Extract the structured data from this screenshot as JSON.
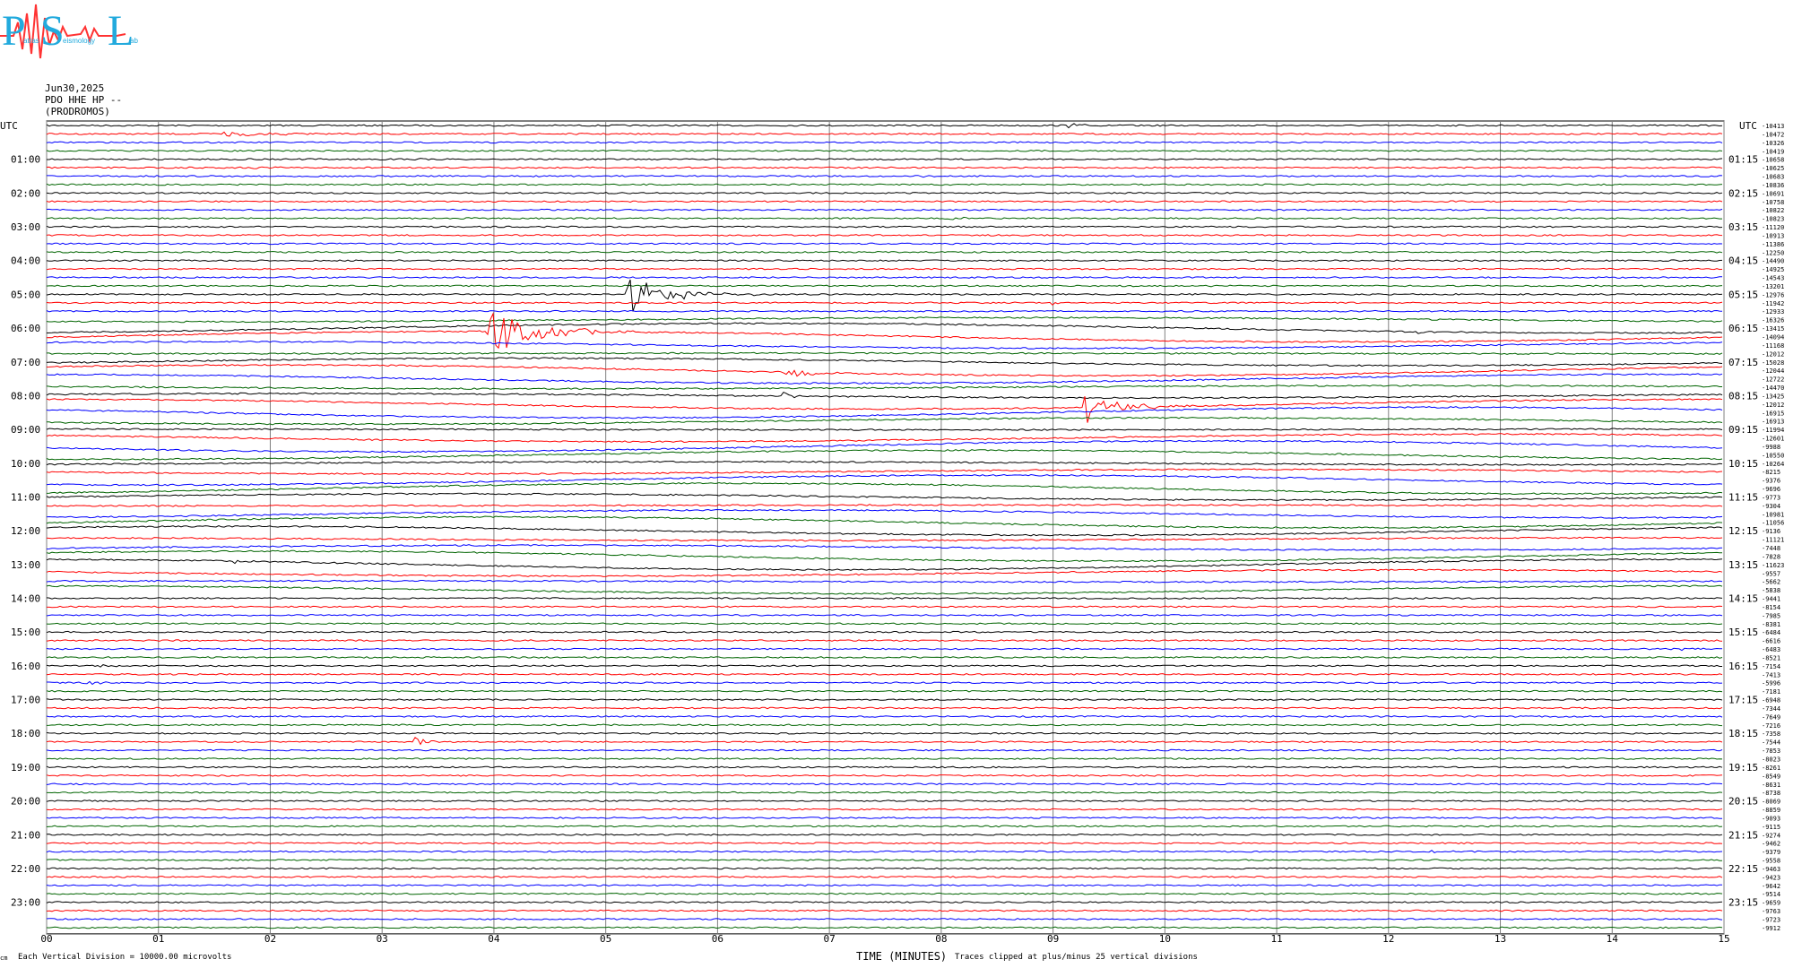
{
  "logo": {
    "letters": [
      "P",
      "S",
      "L"
    ],
    "subtitle_words": [
      "atras",
      "eismology",
      "ab"
    ]
  },
  "header": {
    "date": "Jun30,2025",
    "station": "PDO HHE HP --",
    "location": "(PRODROMOS)"
  },
  "colors": {
    "trace_cycle": [
      "#000000",
      "#ff0000",
      "#0000ff",
      "#006400"
    ],
    "grid": "#808080"
  },
  "footer": {
    "corner": "cm",
    "scale_note": "Each Vertical Division = 10000.00 microvolts",
    "xlabel": "TIME (MINUTES)",
    "clip_note": "Traces clipped at plus/minus 25 vertical divisions"
  },
  "chart_data": {
    "type": "line",
    "title": "",
    "xlabel": "TIME (MINUTES)",
    "xlim": [
      0,
      15
    ],
    "x_ticks": [
      "00",
      "01",
      "02",
      "03",
      "04",
      "05",
      "06",
      "07",
      "08",
      "09",
      "10",
      "11",
      "12",
      "13",
      "14",
      "15"
    ],
    "left_axis_title": "UTC",
    "right_axis_title": "UTC",
    "left_hour_labels": [
      "01:00",
      "02:00",
      "03:00",
      "04:00",
      "05:00",
      "06:00",
      "07:00",
      "08:00",
      "09:00",
      "10:00",
      "11:00",
      "12:00",
      "13:00",
      "14:00",
      "15:00",
      "16:00",
      "17:00",
      "18:00",
      "19:00",
      "20:00",
      "21:00",
      "22:00",
      "23:00"
    ],
    "right_hour_labels": [
      "01:15",
      "02:15",
      "03:15",
      "04:15",
      "05:15",
      "06:15",
      "07:15",
      "08:15",
      "09:15",
      "10:15",
      "11:15",
      "12:15",
      "13:15",
      "14:15",
      "15:15",
      "16:15",
      "17:15",
      "18:15",
      "19:15",
      "20:15",
      "21:15",
      "22:15",
      "23:15"
    ],
    "trace_count": 96,
    "trace_offsets": [
      "-10413",
      "-10472",
      "-10326",
      "-10419",
      "-10658",
      "-10625",
      "-10683",
      "-10836",
      "-10691",
      "-10758",
      "-10822",
      "-10823",
      "-11120",
      "-10913",
      "-11386",
      "-12250",
      "-14490",
      "-14925",
      "-14543",
      "-13201",
      "-12976",
      "-11942",
      "-12933",
      "-16326",
      "-13415",
      "-14094",
      "-11168",
      "-12012",
      "-15028",
      "-12044",
      "-12722",
      "-14470",
      "-13425",
      "-12012",
      "-16915",
      "-16913",
      "-11994",
      "-12601",
      "-9988",
      "-10550",
      "-10264",
      "-8215",
      "-9376",
      "-9696",
      "-9773",
      "-9304",
      "-10981",
      "-11056",
      "-9136",
      "-11121",
      "-7448",
      "-7828",
      "-11623",
      "-9557",
      "-5662",
      "-5838",
      "-9441",
      "-8154",
      "-7985",
      "-8381",
      "-6484",
      "-6616",
      "-6483",
      "-8521",
      "-7154",
      "-7413",
      "-5996",
      "-7181",
      "-6948",
      "-7344",
      "-7649",
      "-7216",
      "-7358",
      "-7544",
      "-7853",
      "-8023",
      "-8261",
      "-8549",
      "-8631",
      "-8738",
      "-8069",
      "-8859",
      "-9093",
      "-9115",
      "-9274",
      "-9462",
      "-9379",
      "-9558",
      "-9463",
      "-9423",
      "-9642",
      "-9514",
      "-9659",
      "-9763",
      "-9723",
      "-9912"
    ],
    "events": [
      {
        "trace": 0,
        "minute": 9.15,
        "amp": 0.25,
        "dur": 0.5
      },
      {
        "trace": 1,
        "minute": 1.6,
        "amp": 0.35,
        "dur": 1.5
      },
      {
        "trace": 4,
        "minute": 3.25,
        "amp": 0.2,
        "dur": 0.3
      },
      {
        "trace": 5,
        "minute": 1.85,
        "amp": 0.35,
        "dur": 0.5
      },
      {
        "trace": 6,
        "minute": 7.8,
        "amp": 0.15,
        "dur": 0.3
      },
      {
        "trace": 11,
        "minute": 8.1,
        "amp": 0.25,
        "dur": 0.3
      },
      {
        "trace": 20,
        "minute": 5.2,
        "amp": 2.3,
        "dur": 1.3
      },
      {
        "trace": 21,
        "minute": 9.0,
        "amp": 0.3,
        "dur": 0.3
      },
      {
        "trace": 24,
        "minute": 12.25,
        "amp": 0.35,
        "dur": 0.3
      },
      {
        "trace": 25,
        "minute": 3.95,
        "amp": 3.1,
        "dur": 1.5
      },
      {
        "trace": 29,
        "minute": 6.6,
        "amp": 1.0,
        "dur": 0.8
      },
      {
        "trace": 32,
        "minute": 6.6,
        "amp": 0.4,
        "dur": 0.3
      },
      {
        "trace": 33,
        "minute": 9.3,
        "amp": 2.0,
        "dur": 1.0
      },
      {
        "trace": 52,
        "minute": 1.7,
        "amp": 0.25,
        "dur": 0.3
      },
      {
        "trace": 62,
        "minute": 14.6,
        "amp": 0.3,
        "dur": 0.3
      },
      {
        "trace": 64,
        "minute": 0.5,
        "amp": 0.2,
        "dur": 0.3
      },
      {
        "trace": 66,
        "minute": 0.35,
        "amp": 0.4,
        "dur": 0.3
      },
      {
        "trace": 73,
        "minute": 3.3,
        "amp": 0.6,
        "dur": 0.4
      },
      {
        "trace": 86,
        "minute": 12.4,
        "amp": 0.15,
        "dur": 0.3
      }
    ]
  }
}
